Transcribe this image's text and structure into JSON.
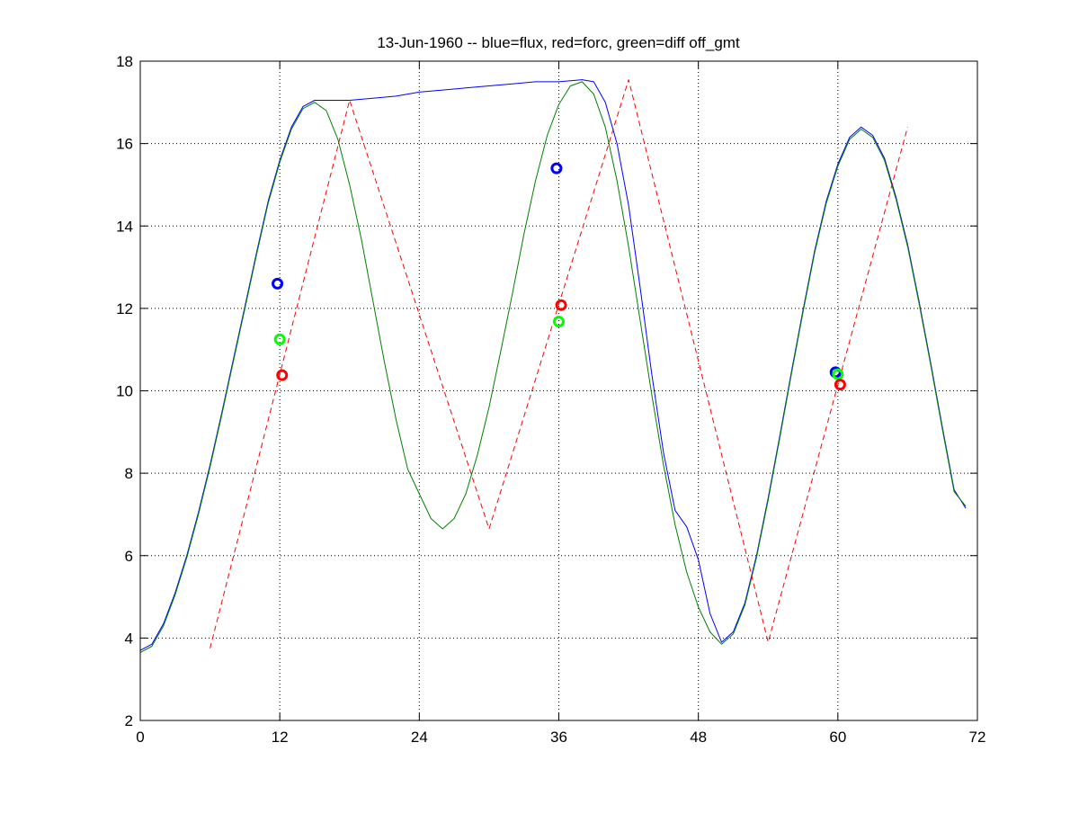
{
  "chart_data": {
    "type": "line",
    "title": "13-Jun-1960 -- blue=flux, red=forc, green=diff off_gmt",
    "xlabel": "",
    "ylabel": "",
    "xlim": [
      0,
      72
    ],
    "ylim": [
      2,
      18
    ],
    "xticks": [
      0,
      12,
      24,
      36,
      48,
      60,
      72
    ],
    "yticks": [
      2,
      4,
      6,
      8,
      10,
      12,
      14,
      16,
      18
    ],
    "grid": true,
    "colors": {
      "flux": "#0000ff",
      "forc": "#ff0000",
      "diff": "#008000",
      "marker_green": "#00ff00"
    },
    "series": [
      {
        "style": "solid",
        "color": "#0000ff",
        "x": [
          0,
          1,
          2,
          3,
          4,
          5,
          6,
          7,
          8,
          9,
          10,
          11,
          12,
          13,
          14,
          15,
          16,
          18,
          20,
          22,
          24,
          26,
          28,
          30,
          32,
          34,
          36,
          38,
          39,
          40,
          41,
          42,
          43,
          44,
          45,
          46,
          47,
          48,
          49,
          50,
          51,
          52,
          53,
          54,
          55,
          56,
          57,
          58,
          59,
          60,
          61,
          62,
          63,
          64,
          65,
          66,
          67,
          68,
          69,
          70,
          71
        ],
        "y": [
          3.7,
          3.85,
          4.35,
          5.1,
          6.0,
          7.05,
          8.2,
          9.45,
          10.75,
          12.05,
          13.35,
          14.6,
          15.6,
          16.4,
          16.9,
          17.05,
          17.05,
          17.05,
          17.1,
          17.15,
          17.25,
          17.3,
          17.35,
          17.4,
          17.45,
          17.5,
          17.5,
          17.55,
          17.5,
          17.0,
          16.0,
          14.5,
          12.5,
          10.4,
          8.5,
          7.1,
          6.7,
          5.9,
          4.6,
          3.9,
          4.15,
          4.85,
          6.0,
          7.4,
          8.9,
          10.45,
          11.95,
          13.4,
          14.6,
          15.5,
          16.15,
          16.4,
          16.2,
          15.65,
          14.7,
          13.55,
          12.15,
          10.65,
          9.1,
          7.6,
          7.15
        ]
      },
      {
        "style": "solid",
        "color": "#008000",
        "x": [
          0,
          1,
          2,
          3,
          4,
          5,
          6,
          7,
          8,
          9,
          10,
          11,
          12,
          13,
          14,
          15,
          16,
          17,
          18,
          19,
          20,
          21,
          22,
          23,
          24,
          25,
          26,
          27,
          28,
          29,
          30,
          31,
          32,
          33,
          34,
          35,
          36,
          37,
          38,
          39,
          40,
          41,
          42,
          43,
          44,
          45,
          46,
          47,
          48,
          49,
          50,
          51,
          52,
          53,
          54,
          55,
          56,
          57,
          58,
          59,
          60,
          61,
          62,
          63,
          64,
          65,
          66,
          67,
          68,
          69,
          70,
          71
        ],
        "y": [
          3.65,
          3.8,
          4.3,
          5.05,
          5.95,
          7.0,
          8.15,
          9.4,
          10.7,
          12.0,
          13.3,
          14.55,
          15.55,
          16.35,
          16.85,
          17.0,
          16.8,
          16.1,
          15.0,
          13.7,
          12.2,
          10.7,
          9.3,
          8.1,
          7.5,
          6.9,
          6.65,
          6.9,
          7.5,
          8.45,
          9.6,
          10.95,
          12.35,
          13.8,
          15.1,
          16.2,
          16.95,
          17.4,
          17.5,
          17.2,
          16.4,
          15.1,
          13.5,
          11.7,
          9.9,
          8.2,
          6.75,
          5.6,
          4.75,
          4.15,
          3.85,
          4.1,
          4.8,
          5.95,
          7.35,
          8.85,
          10.4,
          11.9,
          13.35,
          14.55,
          15.45,
          16.1,
          16.35,
          16.15,
          15.6,
          14.65,
          13.5,
          12.1,
          10.6,
          9.05,
          7.55,
          7.2
        ]
      },
      {
        "style": "dashed",
        "color": "#ff0000",
        "x": [
          6,
          18,
          30,
          42,
          54,
          66
        ],
        "y": [
          3.75,
          17.05,
          6.65,
          17.55,
          3.9,
          16.4
        ]
      }
    ],
    "markers": [
      {
        "x": 11.8,
        "y": 12.6,
        "color": "#0000ff"
      },
      {
        "x": 12.0,
        "y": 11.25,
        "color": "#00ff00"
      },
      {
        "x": 12.2,
        "y": 10.38,
        "color": "#ff0000"
      },
      {
        "x": 35.8,
        "y": 15.4,
        "color": "#0000ff"
      },
      {
        "x": 36.0,
        "y": 11.68,
        "color": "#00ff00"
      },
      {
        "x": 36.2,
        "y": 12.08,
        "color": "#ff0000"
      },
      {
        "x": 59.8,
        "y": 10.45,
        "color": "#0000ff"
      },
      {
        "x": 60.0,
        "y": 10.4,
        "color": "#00ff00"
      },
      {
        "x": 60.2,
        "y": 10.15,
        "color": "#ff0000"
      }
    ]
  }
}
